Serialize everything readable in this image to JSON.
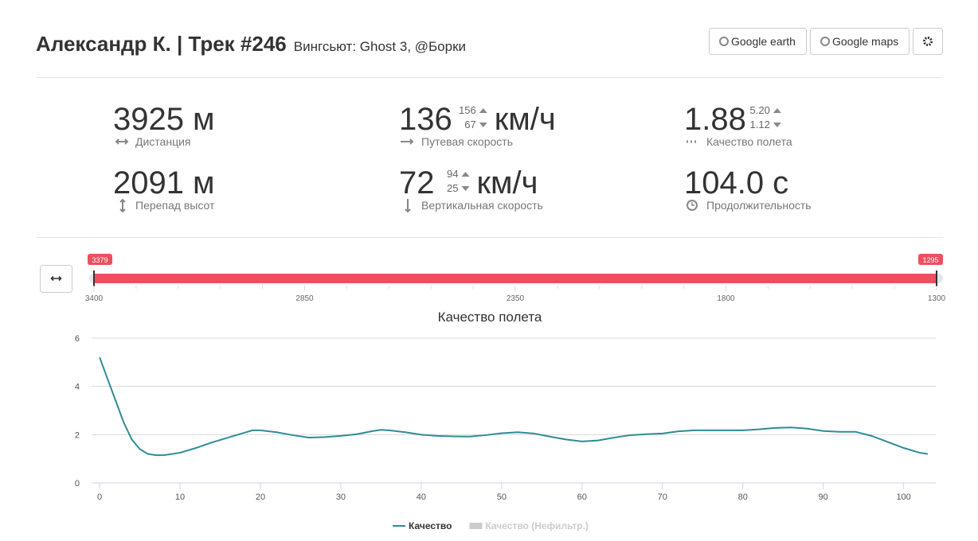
{
  "header": {
    "title": "Александр К. | Трек #246",
    "subtitle": "Вингсьют: Ghost 3, @Борки",
    "buttons": [
      "Google earth",
      "Google maps"
    ]
  },
  "stats": [
    {
      "value": "3925",
      "unit": "м",
      "label": "Дистанция"
    },
    {
      "value": "136",
      "max": "156",
      "min": "67",
      "unit": "км/ч",
      "label": "Путевая скорость"
    },
    {
      "value": "1.88",
      "max": "5.20",
      "min": "1.12",
      "label": "Качество полета"
    },
    {
      "value": "2091",
      "unit": "м",
      "label": "Перепад высот"
    },
    {
      "value": "72",
      "max": "94",
      "min": "25",
      "unit": "км/ч",
      "label": "Вертикальная скорость"
    },
    {
      "value": "104.0",
      "unit": "с",
      "label": "Продолжительность"
    }
  ],
  "range_slider": {
    "from": "3379",
    "to": "1295",
    "grid_labels": [
      "3400",
      "2850",
      "2350",
      "1800",
      "1300"
    ]
  },
  "chart_data": {
    "type": "line",
    "title": "Качество полета",
    "x": [
      0,
      1,
      2,
      3,
      4,
      5,
      6,
      7,
      8,
      10,
      12,
      14,
      16,
      18,
      19,
      20,
      22,
      24,
      26,
      28,
      30,
      32,
      34,
      35,
      36,
      38,
      40,
      42,
      44,
      46,
      48,
      50,
      52,
      54,
      56,
      58,
      60,
      62,
      64,
      66,
      68,
      70,
      72,
      74,
      76,
      78,
      80,
      82,
      84,
      86,
      88,
      90,
      92,
      94,
      96,
      98,
      100,
      102,
      103
    ],
    "series": [
      {
        "name": "Качество",
        "color": "#2f8c94",
        "values": [
          5.2,
          4.3,
          3.4,
          2.5,
          1.8,
          1.4,
          1.2,
          1.15,
          1.15,
          1.25,
          1.45,
          1.68,
          1.88,
          2.08,
          2.18,
          2.18,
          2.1,
          1.98,
          1.88,
          1.9,
          1.95,
          2.02,
          2.15,
          2.2,
          2.18,
          2.1,
          2.0,
          1.95,
          1.93,
          1.92,
          1.98,
          2.06,
          2.1,
          2.05,
          1.92,
          1.8,
          1.72,
          1.76,
          1.88,
          1.98,
          2.02,
          2.05,
          2.14,
          2.18,
          2.18,
          2.18,
          2.18,
          2.22,
          2.28,
          2.3,
          2.25,
          2.15,
          2.12,
          2.12,
          1.95,
          1.7,
          1.45,
          1.25,
          1.2
        ]
      },
      {
        "name": "Качество (Нефильтр.)",
        "color": "#cccccc",
        "hidden": true
      }
    ],
    "xlim": [
      -1,
      104
    ],
    "ylim": [
      0,
      6
    ],
    "xticks": [
      0,
      10,
      20,
      30,
      40,
      50,
      60,
      70,
      80,
      90,
      100
    ],
    "yticks": [
      0,
      2,
      4,
      6
    ],
    "grid": true
  }
}
